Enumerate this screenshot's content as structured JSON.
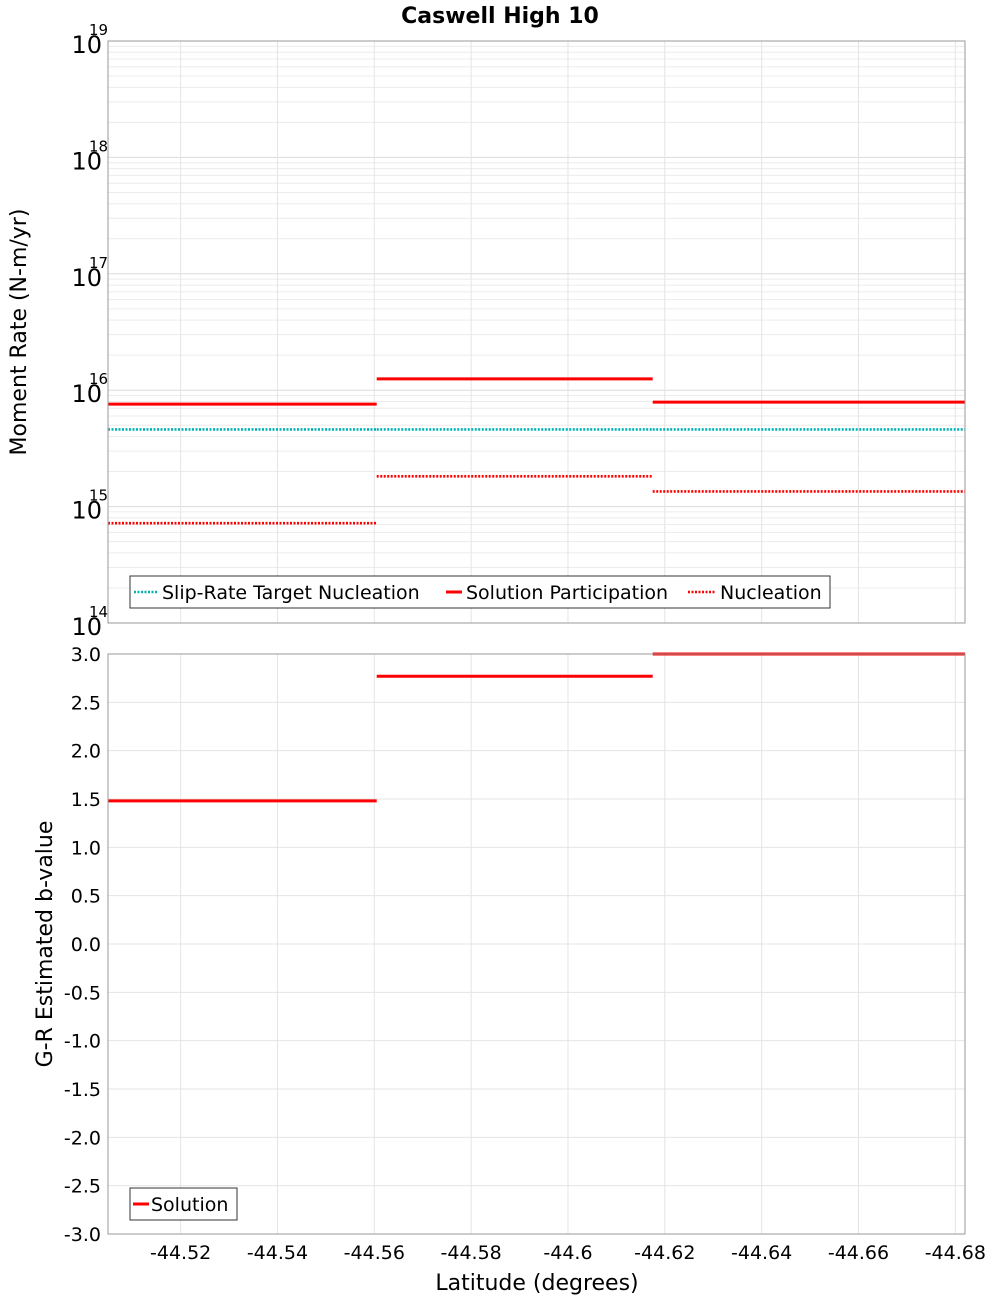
{
  "chart_data": {
    "title": "Caswell High 10",
    "xlabel": "Latitude (degrees)",
    "xlim": [
      -44.505,
      -44.682
    ],
    "xticks": [
      -44.52,
      -44.54,
      -44.56,
      -44.58,
      -44.6,
      -44.62,
      -44.64,
      -44.66,
      -44.68
    ],
    "xtick_labels": [
      "-44.52",
      "-44.54",
      "-44.56",
      "-44.58",
      "-44.6",
      "-44.62",
      "-44.64",
      "-44.66",
      "-44.68"
    ],
    "segment_edges": [
      -44.505,
      -44.5605,
      -44.6175,
      -44.682
    ],
    "panels": [
      {
        "type": "line",
        "yscale": "log",
        "ylabel": "Moment Rate (N-m/yr)",
        "ylim": [
          100000000000000.0,
          1e+19
        ],
        "yticks": [
          {
            "base": "10",
            "exp": "14",
            "value": 100000000000000.0
          },
          {
            "base": "10",
            "exp": "15",
            "value": 1000000000000000.0
          },
          {
            "base": "10",
            "exp": "16",
            "value": 1e+16
          },
          {
            "base": "10",
            "exp": "17",
            "value": 1e+17
          },
          {
            "base": "10",
            "exp": "18",
            "value": 1e+18
          },
          {
            "base": "10",
            "exp": "19",
            "value": 1e+19
          }
        ],
        "legend_position": "bottom-left",
        "series": [
          {
            "name": "Slip-Rate Target Nucleation",
            "color": "#00b3b3",
            "style": "dotted",
            "values": [
              4600000000000000.0,
              4600000000000000.0,
              4600000000000000.0
            ]
          },
          {
            "name": "Solution Participation",
            "color": "#ff0000",
            "style": "solid",
            "values": [
              7600000000000000.0,
              1.25e+16,
              7900000000000000.0
            ]
          },
          {
            "name": "Nucleation",
            "color": "#ff0000",
            "style": "dotted",
            "values": [
              720000000000000.0,
              1820000000000000.0,
              1350000000000000.0
            ]
          }
        ]
      },
      {
        "type": "line",
        "yscale": "linear",
        "ylabel": "G-R Estimated b-value",
        "ylim": [
          -3.0,
          3.0
        ],
        "yticks": [
          3.0,
          2.5,
          2.0,
          1.5,
          1.0,
          0.5,
          0.0,
          -0.5,
          -1.0,
          -1.5,
          -2.0,
          -2.5,
          -3.0
        ],
        "ytick_labels": [
          "3.0",
          "2.5",
          "2.0",
          "1.5",
          "1.0",
          "0.5",
          "0.0",
          "-0.5",
          "-1.0",
          "-1.5",
          "-2.0",
          "-2.5",
          "-3.0"
        ],
        "legend_position": "bottom-left",
        "series": [
          {
            "name": "Solution",
            "color": "#ff0000",
            "style": "solid",
            "values": [
              1.48,
              2.77,
              3.0
            ]
          }
        ]
      }
    ]
  }
}
